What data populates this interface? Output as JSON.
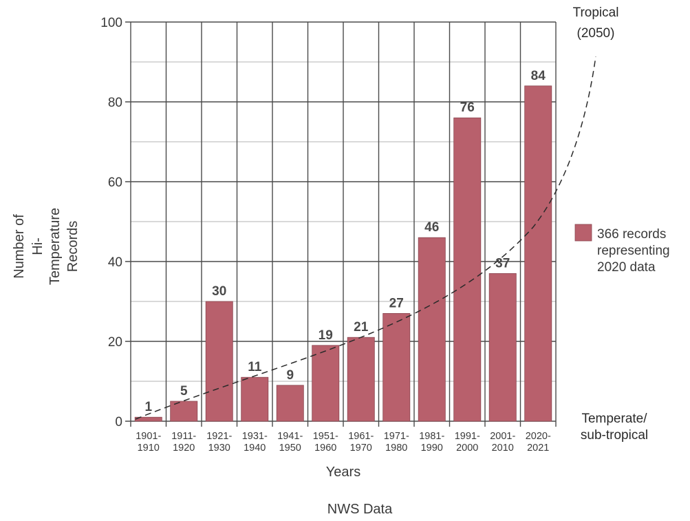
{
  "chart_data": {
    "type": "bar",
    "categories": [
      "1901-1910",
      "1911-1920",
      "1921-1930",
      "1931-1940",
      "1941-1950",
      "1951-1960",
      "1961-1970",
      "1971-1980",
      "1981-1990",
      "1991-2000",
      "2001-2010",
      "2020-2021"
    ],
    "category_lines": [
      [
        "1901-",
        "1910"
      ],
      [
        "1911-",
        "1920"
      ],
      [
        "1921-",
        "1930"
      ],
      [
        "1931-",
        "1940"
      ],
      [
        "1941-",
        "1950"
      ],
      [
        "1951-",
        "1960"
      ],
      [
        "1961-",
        "1970"
      ],
      [
        "1971-",
        "1980"
      ],
      [
        "1981-",
        "1990"
      ],
      [
        "1991-",
        "2000"
      ],
      [
        "2001-",
        "2010"
      ],
      [
        "2020-",
        "2021"
      ]
    ],
    "values": [
      1,
      5,
      30,
      11,
      9,
      19,
      21,
      27,
      46,
      76,
      37,
      84
    ],
    "data_labels": [
      "1",
      "5",
      "30",
      "11",
      "9",
      "19",
      "21",
      "27",
      "46",
      "76",
      "37",
      "84"
    ],
    "xlabel": "Years",
    "ylabel_lines": [
      "Number of",
      "Hi-",
      "Temperature",
      "Records"
    ],
    "ylim": [
      0,
      100
    ],
    "yticks": [
      "0",
      "20",
      "40",
      "60",
      "80",
      "100"
    ],
    "ytick_values": [
      0,
      20,
      40,
      60,
      80,
      100
    ],
    "caption": "NWS Data",
    "grid": true,
    "bar_color": "#b8606c",
    "legend": {
      "placement": "right",
      "lines": [
        "366 records",
        "representing",
        "2020 data"
      ]
    },
    "trend": {
      "style": "dashed",
      "top_label_lines": [
        "Tropical",
        "(2050)"
      ],
      "bottom_label_lines": [
        "Temperate/",
        "sub-tropical"
      ]
    }
  }
}
